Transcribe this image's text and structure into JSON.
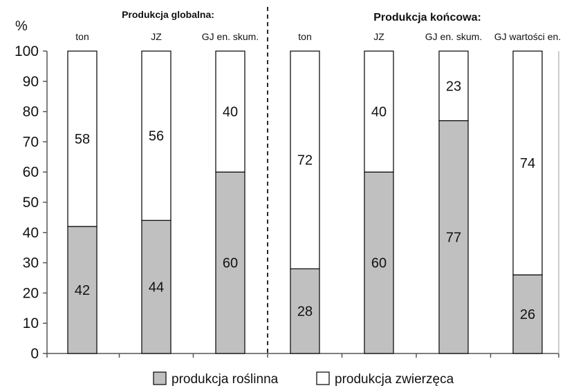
{
  "chart_data": {
    "type": "bar",
    "stacked": true,
    "ylabel": "%",
    "ylim": [
      0,
      100
    ],
    "yticks": [
      0,
      10,
      20,
      30,
      40,
      50,
      60,
      70,
      80,
      90,
      100
    ],
    "groups": [
      {
        "title": "Produkcja globalna:",
        "categories": [
          "ton",
          "JZ",
          "GJ en. skum."
        ]
      },
      {
        "title": "Produkcja końcowa:",
        "categories": [
          "ton",
          "JZ",
          "GJ en. skum.",
          "GJ wartości en."
        ]
      }
    ],
    "categories": [
      "ton",
      "JZ",
      "GJ en. skum.",
      "ton",
      "JZ",
      "GJ en. skum.",
      "GJ wartości en."
    ],
    "series": [
      {
        "name": "produkcja roślinna",
        "color": "#c0c0c0",
        "values": [
          42,
          44,
          60,
          28,
          60,
          77,
          26
        ]
      },
      {
        "name": "produkcja zwierzęca",
        "color": "#ffffff",
        "values": [
          58,
          56,
          40,
          72,
          40,
          23,
          74
        ]
      }
    ],
    "grid": false,
    "legend_position": "bottom"
  }
}
